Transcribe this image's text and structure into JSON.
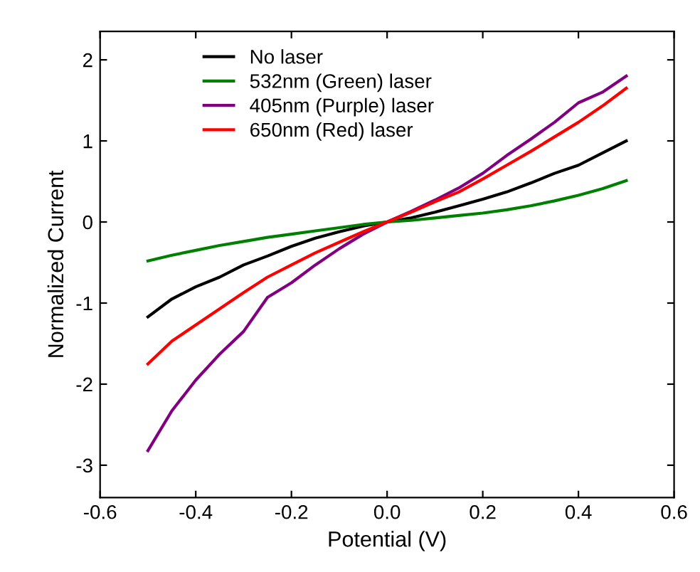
{
  "chart_data": {
    "type": "line",
    "xlabel": "Potential (V)",
    "ylabel": "Normalized Current",
    "xlim": [
      -0.6,
      0.6
    ],
    "xticks": [
      -0.6,
      -0.4,
      -0.2,
      {
        "value": 0,
        "label": "0.0"
      },
      0.2,
      0.4,
      0.6
    ],
    "ylim": [
      -3.4,
      2.35
    ],
    "yticks": [
      -3,
      -2,
      -1,
      0,
      1,
      2
    ],
    "x": [
      -0.5,
      -0.45,
      -0.4,
      -0.35,
      -0.3,
      -0.25,
      -0.2,
      -0.15,
      -0.1,
      -0.05,
      0,
      0.05,
      0.1,
      0.15,
      0.2,
      0.25,
      0.3,
      0.35,
      0.4,
      0.45,
      0.5
    ],
    "legend": "top left",
    "grid": false,
    "marker": "none",
    "line_style": "solid",
    "series": [
      {
        "name": "No laser",
        "color": "#000000",
        "values": [
          -1.17,
          -0.95,
          -0.8,
          -0.68,
          -0.53,
          -0.42,
          -0.3,
          -0.2,
          -0.12,
          -0.05,
          0,
          0.05,
          0.12,
          0.2,
          0.28,
          0.37,
          0.48,
          0.6,
          0.7,
          0.85,
          1.0
        ]
      },
      {
        "name": "532nm (Green) laser",
        "color": "#008000",
        "values": [
          -0.48,
          -0.41,
          -0.35,
          -0.29,
          -0.24,
          -0.19,
          -0.15,
          -0.11,
          -0.07,
          -0.03,
          0,
          0.02,
          0.05,
          0.08,
          0.11,
          0.15,
          0.2,
          0.26,
          0.33,
          0.41,
          0.51
        ]
      },
      {
        "name": "405nm (Purple) laser",
        "color": "#800080",
        "values": [
          -2.82,
          -2.33,
          -1.95,
          -1.63,
          -1.35,
          -0.93,
          -0.75,
          -0.53,
          -0.33,
          -0.15,
          0,
          0.13,
          0.27,
          0.42,
          0.6,
          0.82,
          1.02,
          1.23,
          1.47,
          1.6,
          1.8
        ]
      },
      {
        "name": "650nm (Red) laser",
        "color": "#ff0000",
        "values": [
          -1.75,
          -1.47,
          -1.27,
          -1.07,
          -0.87,
          -0.68,
          -0.53,
          -0.38,
          -0.25,
          -0.12,
          0,
          0.12,
          0.25,
          0.37,
          0.53,
          0.7,
          0.87,
          1.05,
          1.23,
          1.43,
          1.65
        ]
      }
    ]
  }
}
